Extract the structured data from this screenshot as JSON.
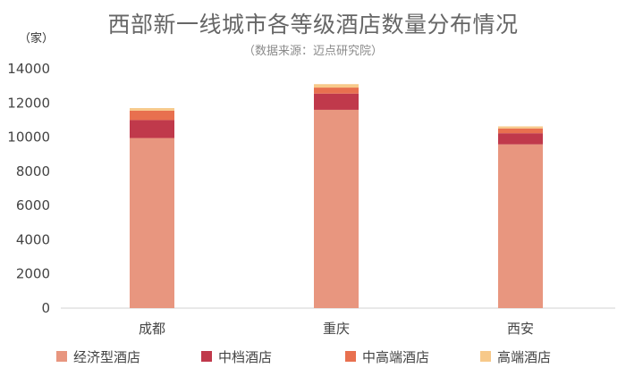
{
  "chart_data": {
    "type": "bar",
    "stacked": true,
    "title": "西部新一线城市各等级酒店数量分布情况",
    "subtitle": "（数据来源：迈点研究院）",
    "unit_label": "（家）",
    "categories": [
      "成都",
      "重庆",
      "西安"
    ],
    "series": [
      {
        "name": "经济型酒店",
        "color": "#E8967F",
        "values": [
          9950,
          11600,
          9580
        ]
      },
      {
        "name": "中档酒店",
        "color": "#C0394B",
        "values": [
          1050,
          950,
          650
        ]
      },
      {
        "name": "中高端酒店",
        "color": "#E8704F",
        "values": [
          550,
          350,
          280
        ]
      },
      {
        "name": "高端酒店",
        "color": "#F7C98A",
        "values": [
          150,
          200,
          120
        ]
      }
    ],
    "y_ticks": [
      "0",
      "2000",
      "4000",
      "6000",
      "8000",
      "10000",
      "12000",
      "14000"
    ],
    "ylim": [
      0,
      14000
    ],
    "grid": false,
    "legend_position": "bottom"
  }
}
